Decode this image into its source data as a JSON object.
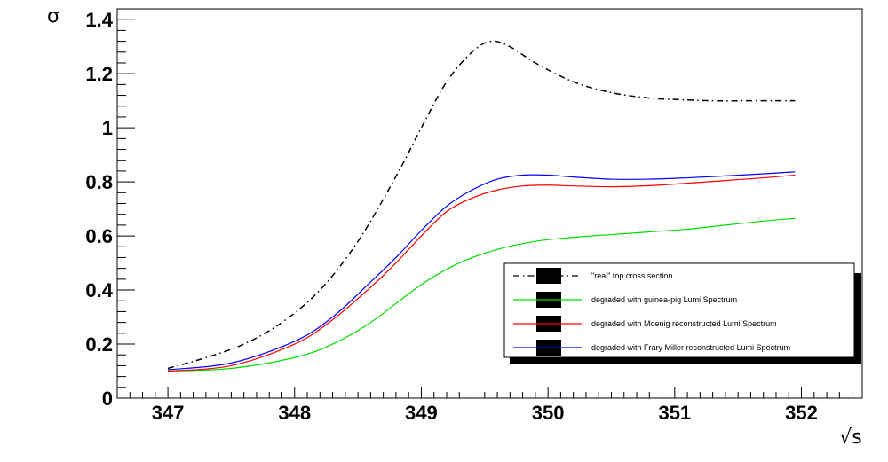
{
  "chart_data": {
    "type": "line",
    "title": "",
    "xlabel": "√s",
    "ylabel": "σ",
    "xlim": [
      346.6,
      352.48
    ],
    "ylim": [
      0,
      1.44
    ],
    "x_major_ticks": [
      347,
      348,
      349,
      350,
      351,
      352
    ],
    "y_major_ticks": [
      0,
      0.2,
      0.4,
      0.6,
      0.8,
      1,
      1.2,
      1.4
    ],
    "x_tick_labels": [
      "347",
      "348",
      "349",
      "350",
      "351",
      "352"
    ],
    "y_tick_labels": [
      "0",
      "0.2",
      "0.4",
      "0.6",
      "0.8",
      "1",
      "1.2",
      "1.4"
    ],
    "grid": false,
    "legend_position": "lower-right",
    "series": [
      {
        "name": "\"real\" top cross section",
        "color": "#000000",
        "style": "dash-dot",
        "x": [
          347.0,
          347.3,
          347.6,
          347.9,
          348.2,
          348.5,
          348.8,
          349.0,
          349.2,
          349.4,
          349.55,
          349.7,
          349.9,
          350.2,
          350.5,
          350.8,
          351.0,
          351.3,
          351.6,
          351.95
        ],
        "y": [
          0.11,
          0.15,
          0.2,
          0.28,
          0.4,
          0.58,
          0.82,
          1.0,
          1.17,
          1.28,
          1.32,
          1.3,
          1.24,
          1.17,
          1.13,
          1.11,
          1.105,
          1.1,
          1.1,
          1.1
        ]
      },
      {
        "name": "degraded with guinea-pig Lumi Spectrum",
        "color": "#00dd00",
        "style": "solid",
        "x": [
          347.0,
          347.5,
          348.0,
          348.3,
          348.6,
          349.0,
          349.3,
          349.6,
          349.9,
          350.2,
          350.5,
          350.8,
          351.1,
          351.4,
          351.7,
          351.95
        ],
        "y": [
          0.1,
          0.11,
          0.15,
          0.2,
          0.28,
          0.42,
          0.5,
          0.55,
          0.58,
          0.595,
          0.605,
          0.615,
          0.625,
          0.64,
          0.655,
          0.665
        ]
      },
      {
        "name": "degraded with Moenig reconstructed Lumi Spectrum",
        "color": "#ff0000",
        "style": "solid",
        "x": [
          347.0,
          347.5,
          348.0,
          348.3,
          348.6,
          348.8,
          349.0,
          349.2,
          349.4,
          349.6,
          349.8,
          350.0,
          350.2,
          350.5,
          350.8,
          351.1,
          351.4,
          351.7,
          351.95
        ],
        "y": [
          0.1,
          0.12,
          0.2,
          0.29,
          0.41,
          0.5,
          0.6,
          0.69,
          0.74,
          0.77,
          0.785,
          0.788,
          0.785,
          0.782,
          0.786,
          0.795,
          0.805,
          0.815,
          0.825
        ]
      },
      {
        "name": "degraded with Frary Miller reconstructed Lumi Spectrum",
        "color": "#0000ff",
        "style": "solid",
        "x": [
          347.0,
          347.5,
          348.0,
          348.3,
          348.6,
          348.8,
          349.0,
          349.2,
          349.4,
          349.6,
          349.8,
          350.0,
          350.2,
          350.5,
          350.8,
          351.1,
          351.4,
          351.7,
          351.95
        ],
        "y": [
          0.105,
          0.13,
          0.21,
          0.3,
          0.43,
          0.52,
          0.62,
          0.71,
          0.77,
          0.81,
          0.825,
          0.825,
          0.818,
          0.81,
          0.81,
          0.815,
          0.822,
          0.83,
          0.837
        ]
      }
    ]
  }
}
